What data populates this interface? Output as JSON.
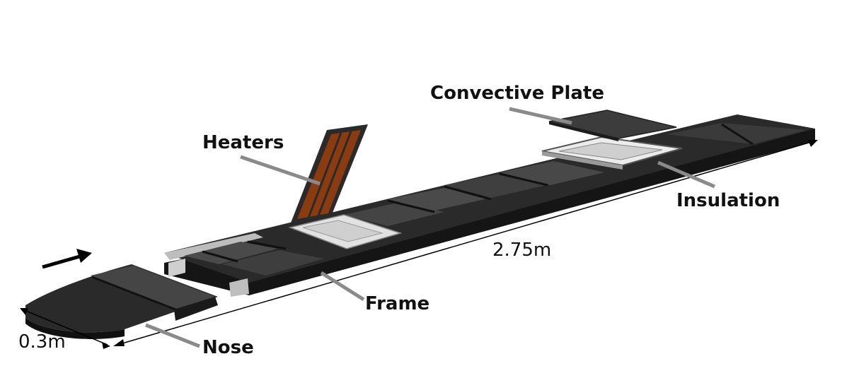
{
  "labels": {
    "convective_plate": "Convective Plate",
    "heaters": "Heaters",
    "insulation": "Insulation",
    "frame": "Frame",
    "nose": "Nose"
  },
  "dimensions": {
    "length": "2.75m",
    "width": "0.3m"
  },
  "colors": {
    "plate_dark": "#3c3c3c",
    "frame_black": "#1b1b1b",
    "heater_copper": "#8b3b10",
    "insulation_light": "#dcdcdc",
    "leader_gray": "#8a8a8a"
  }
}
